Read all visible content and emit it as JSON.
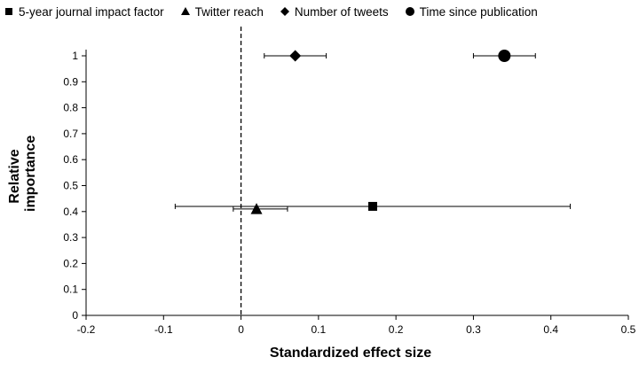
{
  "chart_data": {
    "type": "scatter",
    "title": "",
    "xlabel": "Standardized effect size",
    "ylabel": "Relative importance",
    "xlim": [
      -0.2,
      0.5
    ],
    "ylim": [
      0,
      1
    ],
    "x_ticks": [
      "-0.2",
      "-0.1",
      "0",
      "0.1",
      "0.2",
      "0.3",
      "0.4",
      "0.5"
    ],
    "y_ticks": [
      "0",
      "0.1",
      "0.2",
      "0.3",
      "0.4",
      "0.5",
      "0.6",
      "0.7",
      "0.8",
      "0.9",
      "1"
    ],
    "x_tick_values": [
      -0.2,
      -0.1,
      0,
      0.1,
      0.2,
      0.3,
      0.4,
      0.5
    ],
    "y_tick_values": [
      0,
      0.1,
      0.2,
      0.3,
      0.4,
      0.5,
      0.6,
      0.7,
      0.8,
      0.9,
      1
    ],
    "grid": false,
    "reference_line": {
      "x": 0,
      "style": "dashed"
    },
    "legend_position": "top",
    "series": [
      {
        "name": "5-year journal impact factor",
        "marker": "square",
        "x": 0.17,
        "y": 0.42,
        "x_err_low": -0.085,
        "x_err_high": 0.425
      },
      {
        "name": "Twitter reach",
        "marker": "triangle",
        "x": 0.02,
        "y": 0.41,
        "x_err_low": -0.01,
        "x_err_high": 0.06
      },
      {
        "name": "Number of tweets",
        "marker": "diamond",
        "x": 0.07,
        "y": 1.0,
        "x_err_low": 0.03,
        "x_err_high": 0.11
      },
      {
        "name": "Time since publication",
        "marker": "circle",
        "x": 0.34,
        "y": 1.0,
        "x_err_low": 0.3,
        "x_err_high": 0.38
      }
    ]
  },
  "colors": {
    "marker": "#000000",
    "axis": "#000000",
    "background": "#ffffff"
  }
}
